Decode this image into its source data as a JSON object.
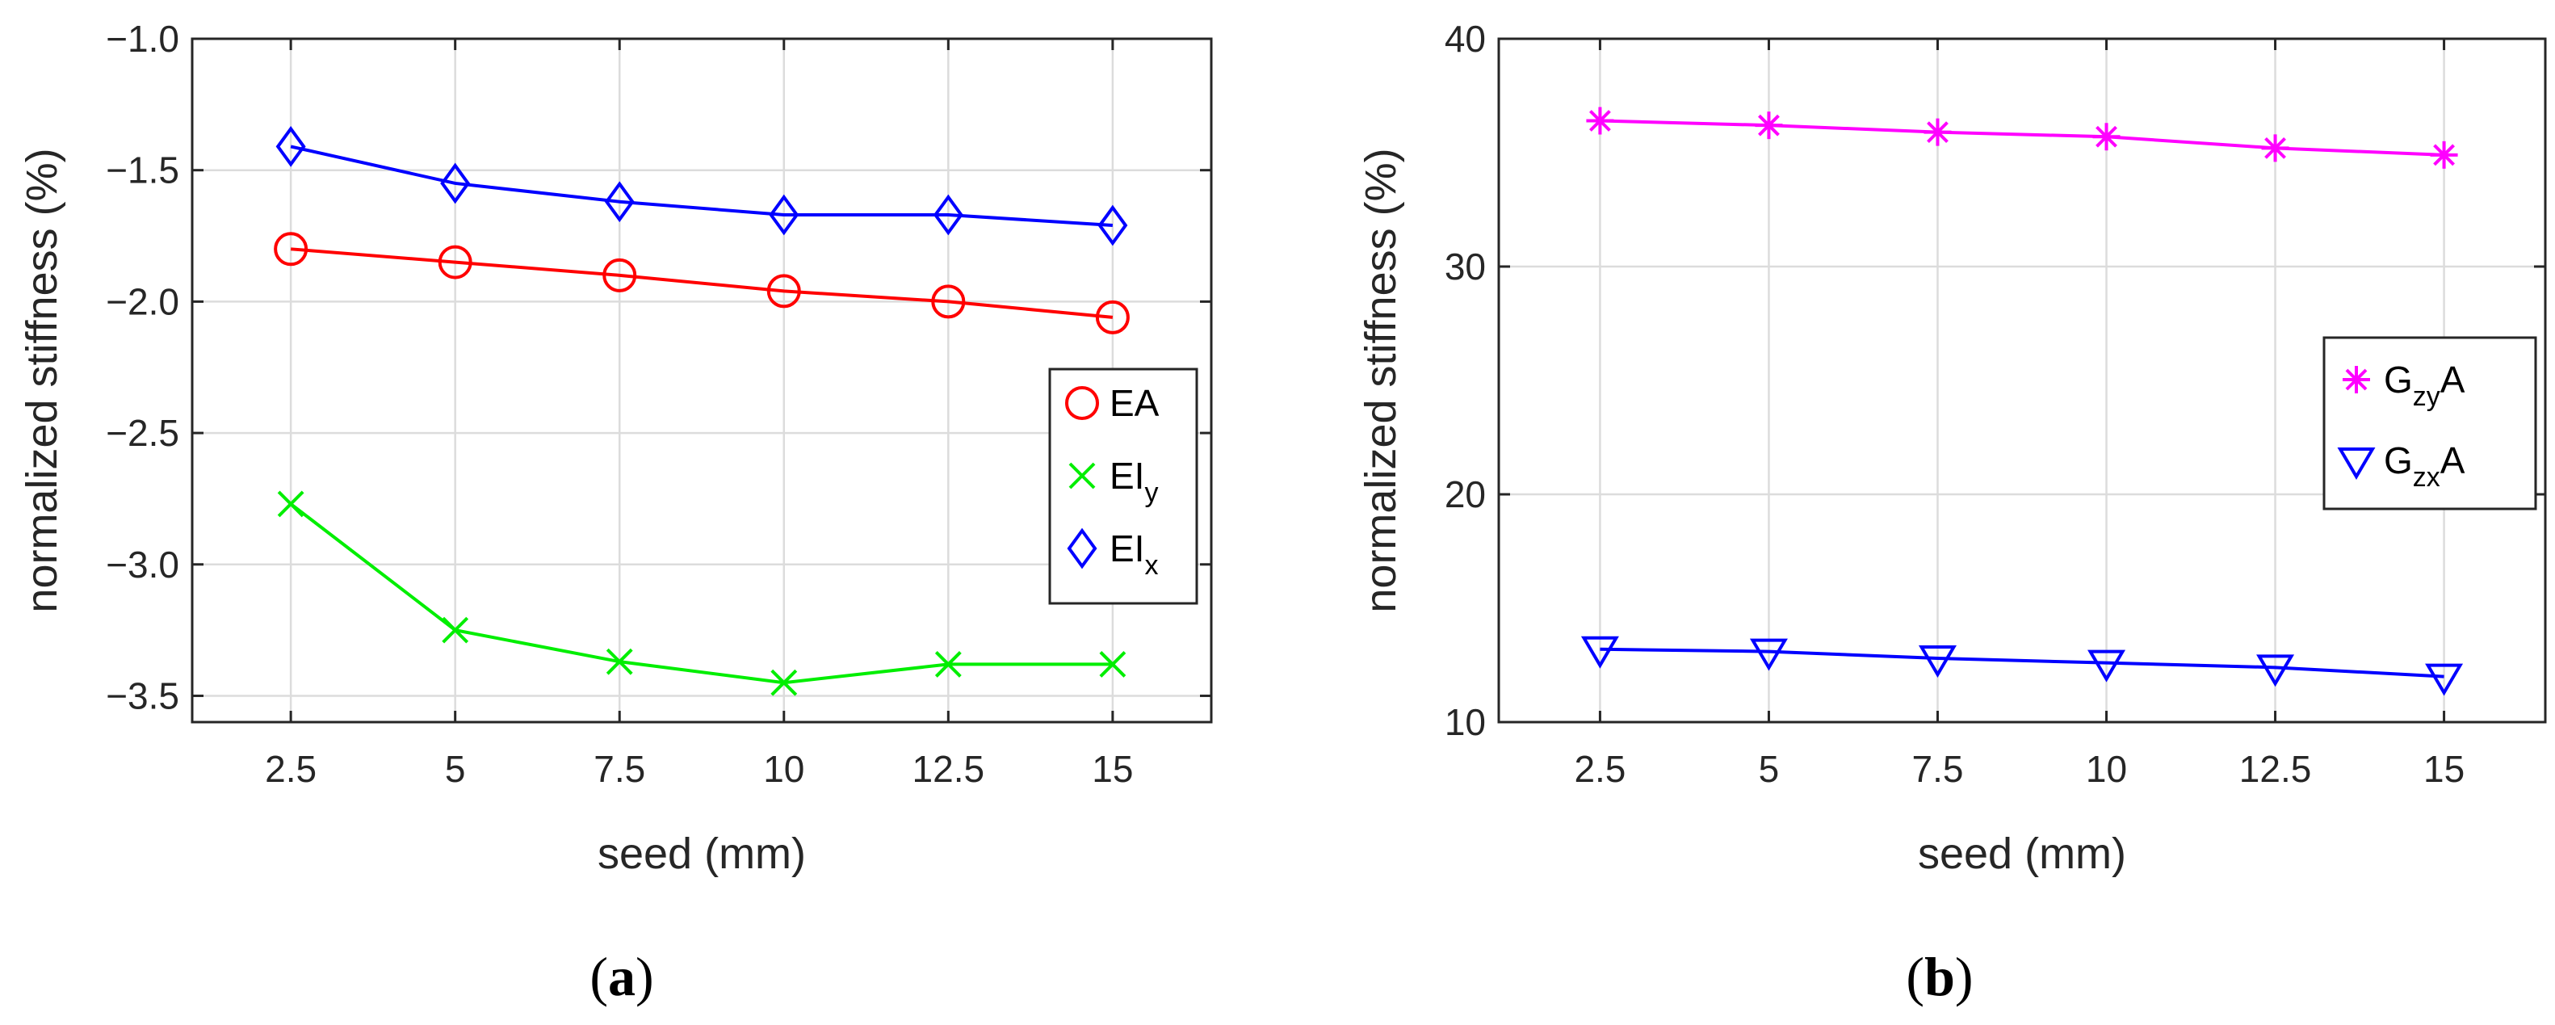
{
  "chart_data": [
    {
      "type": "line",
      "caption": "a",
      "xlabel": "seed (mm)",
      "ylabel": "normalized stiffness (%)",
      "x": [
        2.5,
        5,
        7.5,
        10,
        12.5,
        15
      ],
      "xticks": [
        "2.5",
        "5",
        "7.5",
        "10",
        "12.5",
        "15"
      ],
      "xlim": [
        1.0,
        16.5
      ],
      "ylim": [
        -3.6,
        -1.0
      ],
      "yticks": [
        "-1.0",
        "-1.5",
        "-2.0",
        "-2.5",
        "-3.0",
        "-3.5"
      ],
      "ytick_values": [
        -1.0,
        -1.5,
        -2.0,
        -2.5,
        -3.0,
        -3.5
      ],
      "grid": true,
      "legend_position": "right-middle",
      "series": [
        {
          "name": "EA",
          "base": "EA",
          "sub": "",
          "marker": "circle",
          "color": "#ff0000",
          "values": [
            -1.8,
            -1.85,
            -1.9,
            -1.96,
            -2.0,
            -2.06
          ]
        },
        {
          "name": "EIy",
          "base": "EI",
          "sub": "y",
          "marker": "x",
          "color": "#00ee00",
          "values": [
            -2.77,
            -3.25,
            -3.37,
            -3.45,
            -3.38,
            -3.38
          ]
        },
        {
          "name": "EIx",
          "base": "EI",
          "sub": "x",
          "marker": "diamond",
          "color": "#0000ff",
          "values": [
            -1.41,
            -1.55,
            -1.62,
            -1.67,
            -1.67,
            -1.71
          ]
        }
      ]
    },
    {
      "type": "line",
      "caption": "b",
      "xlabel": "seed (mm)",
      "ylabel": "normalized stiffness (%)",
      "x": [
        2.5,
        5,
        7.5,
        10,
        12.5,
        15
      ],
      "xticks": [
        "2.5",
        "5",
        "7.5",
        "10",
        "12.5",
        "15"
      ],
      "xlim": [
        1.0,
        16.5
      ],
      "ylim": [
        10,
        40
      ],
      "yticks": [
        "40",
        "30",
        "20",
        "10"
      ],
      "ytick_values": [
        40,
        30,
        20,
        10
      ],
      "grid": true,
      "legend_position": "right-middle",
      "series": [
        {
          "name": "GzyA",
          "base": "G",
          "sub": "zy",
          "suffix": "A",
          "marker": "asterisk",
          "color": "#ff00ff",
          "values": [
            36.4,
            36.2,
            35.9,
            35.7,
            35.2,
            34.9
          ]
        },
        {
          "name": "GzxA",
          "base": "G",
          "sub": "zx",
          "suffix": "A",
          "marker": "triangle-down",
          "color": "#0000ff",
          "values": [
            13.2,
            13.1,
            12.8,
            12.6,
            12.4,
            12.0
          ]
        }
      ]
    }
  ]
}
